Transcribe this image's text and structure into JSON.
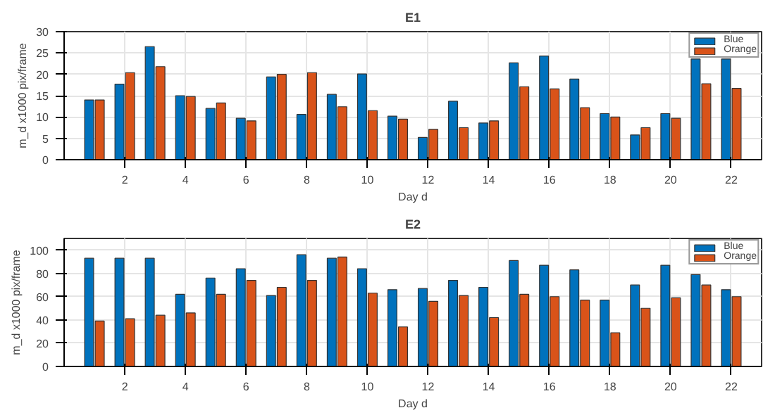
{
  "chart_data": [
    {
      "type": "bar",
      "title": "E1",
      "xlabel": "Day d",
      "ylabel": "m_d x1000 pix/frame",
      "x": [
        1,
        2,
        3,
        4,
        5,
        6,
        7,
        8,
        9,
        10,
        11,
        12,
        13,
        14,
        15,
        16,
        17,
        18,
        19,
        20,
        21,
        22
      ],
      "xlim": [
        0,
        23
      ],
      "xticks": [
        2,
        4,
        6,
        8,
        10,
        12,
        14,
        16,
        18,
        20,
        22
      ],
      "ylim": [
        0,
        30
      ],
      "yticks": [
        0,
        5,
        10,
        15,
        20,
        25,
        30
      ],
      "series": [
        {
          "name": "Blue",
          "color": "#0072bd",
          "values": [
            14,
            17.7,
            26.5,
            15,
            12,
            9.7,
            19.4,
            10.6,
            15.3,
            20.1,
            10.2,
            5.2,
            13.7,
            8.6,
            22.7,
            24.3,
            18.9,
            10.8,
            5.8,
            10.8,
            23.6,
            23.6
          ]
        },
        {
          "name": "Orange",
          "color": "#d95319",
          "values": [
            14,
            20.4,
            21.8,
            14.8,
            13.3,
            9.1,
            20,
            20.4,
            12.4,
            11.5,
            9.5,
            7.1,
            7.5,
            9.1,
            17.1,
            16.6,
            12.2,
            10,
            7.5,
            9.7,
            17.8,
            16.7
          ]
        }
      ],
      "grid": true,
      "legend": "top right"
    },
    {
      "type": "bar",
      "title": "E2",
      "xlabel": "Day d",
      "ylabel": "m_d x1000 pix/frame",
      "x": [
        1,
        2,
        3,
        4,
        5,
        6,
        7,
        8,
        9,
        10,
        11,
        12,
        13,
        14,
        15,
        16,
        17,
        18,
        19,
        20,
        21,
        22
      ],
      "xlim": [
        0,
        23
      ],
      "xticks": [
        2,
        4,
        6,
        8,
        10,
        12,
        14,
        16,
        18,
        20,
        22
      ],
      "ylim": [
        0,
        110
      ],
      "yticks": [
        0,
        20,
        40,
        60,
        80,
        100
      ],
      "series": [
        {
          "name": "Blue",
          "color": "#0072bd",
          "values": [
            93,
            93,
            93,
            62,
            76,
            84,
            61,
            96,
            93,
            84,
            66,
            67,
            74,
            68,
            91,
            87,
            83,
            57,
            70,
            87,
            79,
            66
          ]
        },
        {
          "name": "Orange",
          "color": "#d95319",
          "values": [
            39,
            41,
            44,
            46,
            62,
            74,
            68,
            74,
            94,
            63,
            34,
            56,
            61,
            42,
            62,
            60,
            57,
            29,
            50,
            59,
            70,
            60
          ]
        }
      ],
      "grid": true,
      "legend": "top right"
    }
  ]
}
